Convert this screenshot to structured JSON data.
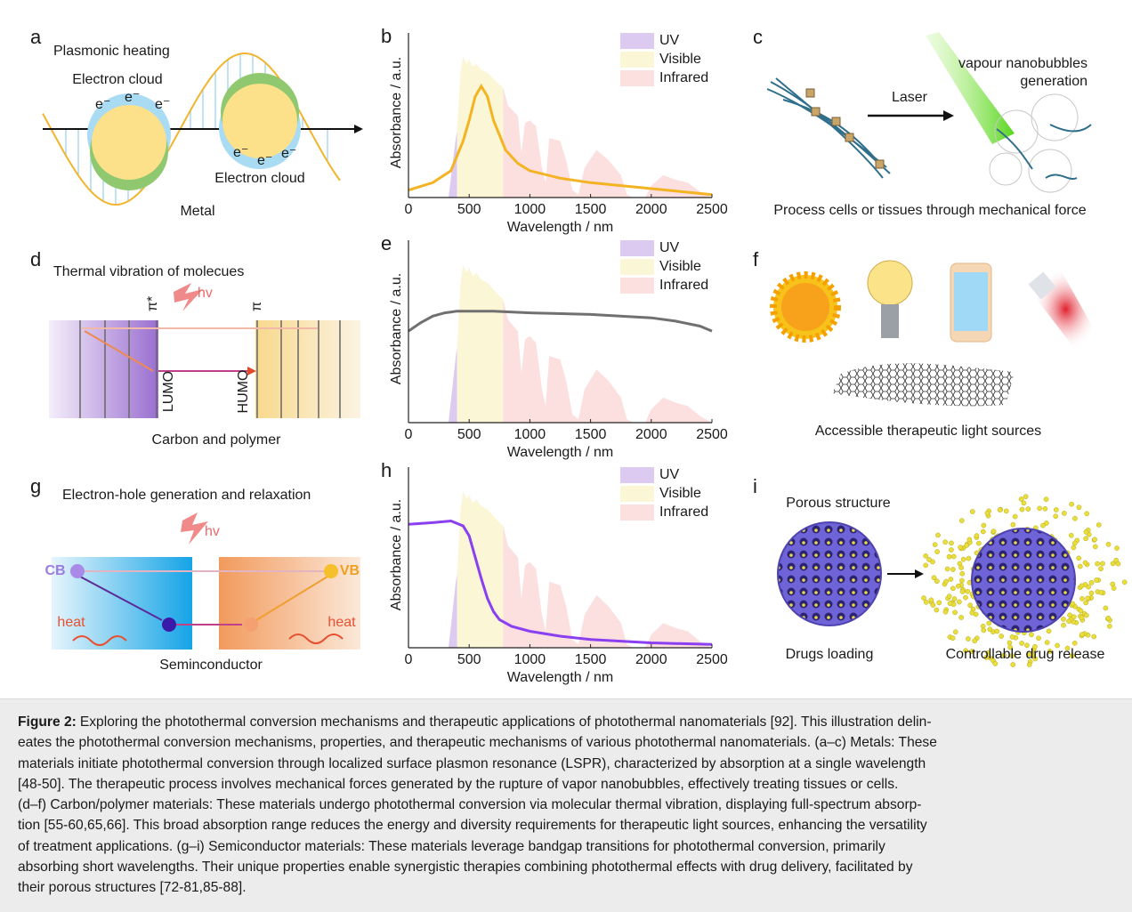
{
  "panels": {
    "a": {
      "label": "a",
      "title": "Plasmonic heating",
      "cloud_top": "Electron cloud",
      "cloud_bottom": "Electron cloud",
      "electrons": [
        "e⁻",
        "e⁻",
        "e⁻",
        "e⁻",
        "e⁻",
        "e⁻"
      ],
      "material": "Metal"
    },
    "c": {
      "label": "c",
      "bubbles": [
        "vapour nanobubbles",
        "generation"
      ],
      "laser": "Laser",
      "caption": "Process cells or tissues through mechanical force"
    },
    "d": {
      "label": "d",
      "title": "Thermal vibration of molecues",
      "hv": "hv",
      "pi_star": "π*",
      "pi": "π",
      "lumo": "LUMO",
      "humo": "HUMO",
      "material": "Carbon and polymer"
    },
    "f": {
      "label": "f",
      "caption": "Accessible therapeutic light sources"
    },
    "g": {
      "label": "g",
      "title": "Electron-hole generation and relaxation",
      "hv": "hv",
      "cb": "CB",
      "vb": "VB",
      "heat_left": "heat",
      "heat_right": "heat",
      "material": "Seminconductor"
    },
    "i": {
      "label": "i",
      "porous": "Porous structure",
      "loading": "Drugs loading",
      "release": "Controllable drug release"
    }
  },
  "chart_data": [
    {
      "type": "line",
      "label": "b",
      "xlabel": "Wavelength / nm",
      "ylabel": "Absorbance / a.u.",
      "xlim": [
        0,
        2500
      ],
      "ylim": [
        0,
        1
      ],
      "xticks": [
        0,
        500,
        1000,
        1500,
        2000,
        2500
      ],
      "bands": [
        {
          "name": "UV",
          "color": "#dccaf0",
          "x": [
            330,
            360,
            390,
            400
          ],
          "values": [
            0,
            0.2,
            0.4,
            0.45
          ]
        },
        {
          "name": "Visible",
          "color": "#fbf6d6",
          "x": [
            400,
            430,
            450,
            480,
            500,
            530,
            560,
            600,
            650,
            700,
            750,
            780
          ],
          "values": [
            0.45,
            0.85,
            0.95,
            0.9,
            0.93,
            0.88,
            0.9,
            0.86,
            0.84,
            0.8,
            0.76,
            0.74
          ]
        },
        {
          "name": "Infrared",
          "color": "#fcdfdf",
          "x": [
            780,
            820,
            900,
            930,
            960,
            1000,
            1050,
            1100,
            1130,
            1160,
            1250,
            1300,
            1350,
            1400,
            1450,
            1550,
            1650,
            1750,
            1800,
            1850,
            1950,
            2000,
            2100,
            2200,
            2300,
            2400,
            2500
          ],
          "values": [
            0.74,
            0.62,
            0.55,
            0.3,
            0.5,
            0.52,
            0.48,
            0.2,
            0.1,
            0.4,
            0.38,
            0.25,
            0.05,
            0.02,
            0.2,
            0.32,
            0.25,
            0.15,
            0.02,
            0,
            0,
            0.08,
            0.15,
            0.12,
            0.1,
            0.04,
            0
          ]
        }
      ],
      "x": [
        0,
        200,
        350,
        450,
        500,
        550,
        600,
        650,
        700,
        800,
        900,
        1000,
        1250,
        1500,
        2000,
        2500
      ],
      "series": [
        {
          "color": "#f4b322",
          "values": [
            0.05,
            0.1,
            0.18,
            0.38,
            0.52,
            0.68,
            0.75,
            0.68,
            0.52,
            0.32,
            0.23,
            0.18,
            0.13,
            0.1,
            0.06,
            0.02
          ]
        }
      ]
    },
    {
      "type": "line",
      "label": "e",
      "xlabel": "Wavelength / nm",
      "ylabel": "Absorbance / a.u.",
      "xlim": [
        0,
        2500
      ],
      "ylim": [
        0,
        1
      ],
      "xticks": [
        0,
        500,
        1000,
        1500,
        2000,
        2500
      ],
      "bands": [
        {
          "name": "UV",
          "color": "#dccaf0",
          "x": [
            330,
            360,
            390,
            400
          ],
          "values": [
            0,
            0.2,
            0.4,
            0.45
          ]
        },
        {
          "name": "Visible",
          "color": "#fbf6d6",
          "x": [
            400,
            430,
            450,
            480,
            500,
            530,
            560,
            600,
            650,
            700,
            750,
            780
          ],
          "values": [
            0.45,
            0.85,
            0.95,
            0.9,
            0.93,
            0.88,
            0.9,
            0.86,
            0.84,
            0.8,
            0.76,
            0.74
          ]
        },
        {
          "name": "Infrared",
          "color": "#fcdfdf",
          "x": [
            780,
            820,
            900,
            930,
            960,
            1000,
            1050,
            1100,
            1130,
            1160,
            1250,
            1300,
            1350,
            1400,
            1450,
            1550,
            1650,
            1750,
            1800,
            1850,
            1950,
            2000,
            2100,
            2200,
            2300,
            2400,
            2500
          ],
          "values": [
            0.74,
            0.62,
            0.55,
            0.3,
            0.5,
            0.52,
            0.48,
            0.2,
            0.1,
            0.4,
            0.38,
            0.25,
            0.05,
            0.02,
            0.2,
            0.32,
            0.25,
            0.15,
            0.02,
            0,
            0,
            0.08,
            0.15,
            0.12,
            0.1,
            0.04,
            0
          ]
        }
      ],
      "x": [
        0,
        100,
        200,
        300,
        400,
        500,
        700,
        1000,
        1500,
        2000,
        2200,
        2400,
        2500
      ],
      "series": [
        {
          "color": "#707070",
          "values": [
            0.55,
            0.6,
            0.64,
            0.66,
            0.67,
            0.67,
            0.67,
            0.66,
            0.65,
            0.63,
            0.61,
            0.58,
            0.55
          ]
        }
      ]
    },
    {
      "type": "line",
      "label": "h",
      "xlabel": "Wavelength / nm",
      "ylabel": "Absorbance / a.u.",
      "xlim": [
        0,
        2500
      ],
      "ylim": [
        0,
        1
      ],
      "xticks": [
        0,
        500,
        1000,
        1500,
        2000,
        2500
      ],
      "bands": [
        {
          "name": "UV",
          "color": "#dccaf0",
          "x": [
            330,
            360,
            390,
            400
          ],
          "values": [
            0,
            0.2,
            0.4,
            0.45
          ]
        },
        {
          "name": "Visible",
          "color": "#fbf6d6",
          "x": [
            400,
            430,
            450,
            480,
            500,
            530,
            560,
            600,
            650,
            700,
            750,
            780
          ],
          "values": [
            0.45,
            0.85,
            0.95,
            0.9,
            0.93,
            0.88,
            0.9,
            0.86,
            0.84,
            0.8,
            0.76,
            0.74
          ]
        },
        {
          "name": "Infrared",
          "color": "#fcdfdf",
          "x": [
            780,
            820,
            900,
            930,
            960,
            1000,
            1050,
            1100,
            1130,
            1160,
            1250,
            1300,
            1350,
            1400,
            1450,
            1550,
            1650,
            1750,
            1800,
            1850,
            1950,
            2000,
            2100,
            2200,
            2300,
            2400,
            2500
          ],
          "values": [
            0.74,
            0.62,
            0.55,
            0.3,
            0.5,
            0.52,
            0.48,
            0.2,
            0.1,
            0.4,
            0.38,
            0.25,
            0.05,
            0.02,
            0.2,
            0.32,
            0.25,
            0.15,
            0.02,
            0,
            0,
            0.08,
            0.15,
            0.12,
            0.1,
            0.04,
            0
          ]
        }
      ],
      "x": [
        0,
        200,
        350,
        450,
        500,
        550,
        600,
        650,
        700,
        750,
        850,
        1000,
        1250,
        1500,
        2000,
        2500
      ],
      "series": [
        {
          "color": "#8a3ff0",
          "values": [
            0.75,
            0.76,
            0.77,
            0.74,
            0.68,
            0.55,
            0.42,
            0.3,
            0.22,
            0.17,
            0.13,
            0.1,
            0.07,
            0.05,
            0.03,
            0.02
          ]
        }
      ]
    }
  ],
  "caption": {
    "label": "Figure 2:",
    "lines": [
      "Exploring the photothermal conversion mechanisms and therapeutic applications of photothermal nanomaterials [92]. This illustration delin-",
      "eates the photothermal conversion mechanisms, properties, and therapeutic mechanisms of various photothermal nanomaterials. (a–c) Metals: These",
      "materials initiate photothermal conversion through localized surface plasmon resonance (LSPR), characterized by absorption at a single wavelength",
      "[48-50]. The therapeutic process involves mechanical forces generated by the rupture of vapor nanobubbles, effectively treating tissues or cells.",
      "(d–f) Carbon/polymer materials: These materials undergo photothermal conversion via molecular thermal vibration, displaying full-spectrum absorp-",
      "tion [55-60,65,66]. This broad absorption range reduces the energy and diversity requirements for therapeutic light sources, enhancing the versatility",
      "of treatment applications. (g–i) Semiconductor materials: These materials leverage bandgap transitions for photothermal conversion, primarily",
      "absorbing short wavelengths. Their unique properties enable synergistic therapies combining photothermal effects with drug delivery, facilitated by",
      "their porous structures [72-81,85-88]."
    ]
  }
}
